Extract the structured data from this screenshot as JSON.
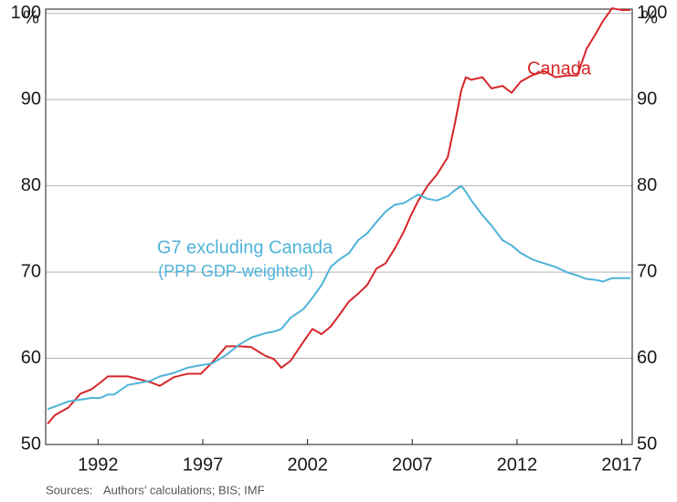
{
  "chart_data": {
    "type": "line",
    "y_unit": "%",
    "annotations": [
      "Canada",
      "G7 excluding Canada",
      "(PPP GDP-weighted)"
    ],
    "source_label": "Sources:",
    "source": "Authors’ calculations; BIS; IMF",
    "xlim": [
      1990,
      2018
    ],
    "xticks": [
      {
        "value": 1992.5,
        "label": "1992"
      },
      {
        "value": 1997.5,
        "label": "1997"
      },
      {
        "value": 2002.5,
        "label": "2002"
      },
      {
        "value": 2007.5,
        "label": "2007"
      },
      {
        "value": 2012.5,
        "label": "2012"
      },
      {
        "value": 2017.5,
        "label": "2017"
      }
    ],
    "ylim": [
      50,
      100.5
    ],
    "yticks": [
      50,
      60,
      70,
      80,
      90,
      100
    ],
    "y2lim": [
      50,
      100.5
    ],
    "y2ticks": [
      50,
      60,
      70,
      80,
      90,
      100
    ],
    "grid": true,
    "x": [
      1990.09,
      1990.44,
      1991.09,
      1991.66,
      1992.18,
      1992.62,
      1992.97,
      1993.27,
      1993.92,
      1994.58,
      1995.02,
      1995.45,
      1996.11,
      1996.76,
      1997.41,
      1997.94,
      1998.63,
      1999.25,
      1999.81,
      2000.47,
      2000.9,
      2001.25,
      2001.69,
      2002.3,
      2002.73,
      2003.17,
      2003.61,
      2004.04,
      2004.48,
      2004.92,
      2005.35,
      2005.79,
      2006.22,
      2006.66,
      2007.1,
      2007.44,
      2007.79,
      2008.23,
      2008.67,
      2009.19,
      2009.54,
      2009.84,
      2010.06,
      2010.32,
      2010.85,
      2011.28,
      2011.81,
      2012.24,
      2012.68,
      2013.2,
      2013.81,
      2014.34,
      2014.86,
      2015.38,
      2015.82,
      2016.25,
      2016.6,
      2017.04,
      2017.48,
      2017.91
    ],
    "series": [
      {
        "name": "Canada",
        "color": "#d7262a",
        "values": [
          52.4,
          53.4,
          54.3,
          55.9,
          56.4,
          57.2,
          57.9,
          57.9,
          57.9,
          57.5,
          57.2,
          56.8,
          57.8,
          58.2,
          58.2,
          59.5,
          61.4,
          61.4,
          61.3,
          60.3,
          59.9,
          58.9,
          59.7,
          61.9,
          63.4,
          62.8,
          63.7,
          65.1,
          66.6,
          67.5,
          68.5,
          70.4,
          71.0,
          72.7,
          74.7,
          76.6,
          78.3,
          80.0,
          81.3,
          83.3,
          87.3,
          91.1,
          92.6,
          92.3,
          92.6,
          91.3,
          91.6,
          90.8,
          92.1,
          92.8,
          93.3,
          92.6,
          92.8,
          92.8,
          95.9,
          97.6,
          99.1,
          100.6,
          100.4,
          100.4
        ]
      },
      {
        "name": "G7 excluding Canada",
        "color": "#4fb3d9",
        "values": [
          54.1,
          54.4,
          55.0,
          55.2,
          55.4,
          55.4,
          55.8,
          55.8,
          56.9,
          57.2,
          57.4,
          57.9,
          58.3,
          58.9,
          59.2,
          59.4,
          60.4,
          61.6,
          62.4,
          62.9,
          63.1,
          63.4,
          64.7,
          65.7,
          67.0,
          68.5,
          70.6,
          71.5,
          72.2,
          73.7,
          74.5,
          75.8,
          77.0,
          77.8,
          78.0,
          78.5,
          79.0,
          78.5,
          78.3,
          78.8,
          79.5,
          80.0,
          79.3,
          78.3,
          76.6,
          75.4,
          73.7,
          73.1,
          72.2,
          71.5,
          71.0,
          70.6,
          70.0,
          69.6,
          69.2,
          69.1,
          68.9,
          69.3,
          69.3,
          69.3
        ]
      }
    ]
  }
}
